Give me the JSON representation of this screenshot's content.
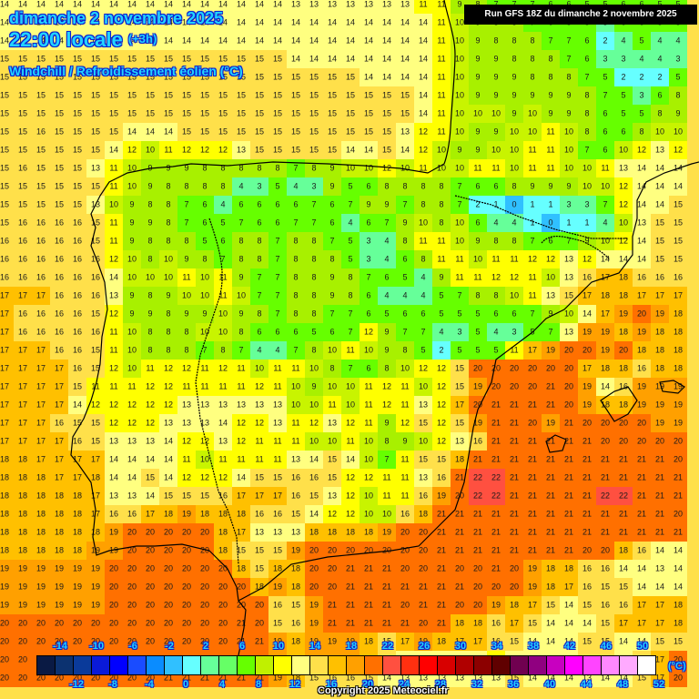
{
  "header": {
    "date": "dimanche 2 novembre 2025",
    "time": "22:00 locale",
    "offset": "(+3h)",
    "parameter": "Windchill / Refroidissement éolien (°C)",
    "run": "Run GFS 18Z du dimanche 2 novembre 2025"
  },
  "footer": {
    "copyright": "Copyright 2025 Meteociel.fr",
    "unit": "(°C)"
  },
  "legend": {
    "colors": [
      "#0a1a44",
      "#0c3270",
      "#0a3a9a",
      "#0a1ad8",
      "#0000ff",
      "#1a4cff",
      "#0a8cff",
      "#30c0ff",
      "#66ffff",
      "#66ff99",
      "#66ff66",
      "#66ff00",
      "#c0f000",
      "#ffff00",
      "#ffff80",
      "#ffe04a",
      "#ffc000",
      "#ffa000",
      "#ff7000",
      "#ff5040",
      "#ff3010",
      "#ff0000",
      "#d80000",
      "#b00000",
      "#8c0000",
      "#600000",
      "#700050",
      "#900080",
      "#c800c0",
      "#ff00ff",
      "#ff44ff",
      "#ff88ff",
      "#ffaaff",
      "#ffffff"
    ],
    "top_labels": [
      "-14",
      "-10",
      "-6",
      "-2",
      "2",
      "6",
      "10",
      "14",
      "18",
      "22",
      "26",
      "30",
      "34",
      "38",
      "42",
      "46",
      "50"
    ],
    "bottom_labels": [
      "-12",
      "-8",
      "-4",
      "0",
      "4",
      "8",
      "12",
      "16",
      "20",
      "24",
      "28",
      "32",
      "36",
      "40",
      "44",
      "48",
      "52"
    ]
  },
  "map": {
    "region": "Iberian Peninsula and Balearic Islands",
    "grid_origin": [
      5,
      5
    ],
    "grid_step": 20,
    "rows": [
      "14 14 14 14 14 14 14 14 14 14 14 14 14 14 14 14 13 13 13 13 13 13 13 11 11 9 8 7 7 7 6 6 5 5 6 6 5 5",
      "14 14 14 14 14 14 14 14 14 14 14 14 14 14 14 14 14 14 14 14 14 14 14 14 11 10 9 8 8 7 6 5 5 3 6 6 5 5",
      "14 14 14 14 14 14 14 14 14 14 14 14 14 14 14 14 14 14 14 14 14 14 14 14 11 10 9 8 8 8 7 7 6 2 4 5 4 4",
      "15 15 15 15 15 15 15 15 15 15 15 15 15 15 15 15 14 14 14 14 14 14 14 14 11 10 9 9 8 8 8 7 6 3 3 4 4 3",
      "15 15 15 15 15 15 15 15 15 15 15 15 15 15 15 15 15 15 15 15 14 14 14 14 11 10 9 9 9 8 8 8 7 5 2 2 2 5",
      "15 15 15 15 15 15 15 15 15 15 15 15 15 15 15 15 15 15 15 15 15 15 15 14 11 10 9 9 9 9 9 9 8 7 5 3 6 8",
      "15 15 15 15 15 15 15 15 15 15 15 15 15 15 15 15 15 15 15 15 15 15 15 14 11 10 10 10 9 10 9 9 8 6 5 5 8 9",
      "15 15 16 15 15 15 15 14 14 14 15 15 15 15 15 15 15 15 15 15 15 15 13 12 11 10 9 9 10 10 11 10 8 6 6 8 10 10",
      "15 15 15 15 15 15 14 12 10 11 12 12 12 13 15 15 15 15 15 14 14 15 14 12 10 9 9 10 10 11 11 10 7 6 10 12 13 12",
      "15 16 15 15 15 13 11 10 9 9 9 8 8 8 8 8 7 8 9 10 10 12 10 11 10 10 11 11 10 11 11 10 10 11 13 14 14 14",
      "15 15 15 15 15 15 11 10 9 8 8 8 8 4 3 5 4 3 9 5 6 8 8 8 8 7 6 6 8 9 9 9 10 10 12 14 14 14",
      "15 15 15 15 15 13 10 9 8 8 7 6 4 6 6 6 6 7 6 7 9 9 7 8 8 7 2 1 0 1 1 3 3 7 12 14 14 15",
      "15 16 16 16 16 15 11 9 9 8 7 6 5 7 6 6 7 7 6 4 6 7 9 10 8 10 6 4 4 1 0 1 1 4 10 13 15 15",
      "16 16 16 16 16 15 11 9 8 8 8 5 6 8 8 7 8 8 7 5 3 4 8 11 11 10 9 8 8 7 6 7 9 10 12 14 15 15",
      "16 16 16 16 16 16 12 10 8 10 9 8 7 8 8 7 8 8 8 5 3 4 6 8 11 11 10 11 11 12 12 13 12 14 14 14 15 15",
      "16 16 16 16 16 16 14 10 10 10 11 10 11 9 7 7 8 8 9 8 7 6 5 4 9 11 11 12 12 11 10 13 16 17 18 16 16 16",
      "17 17 17 16 16 16 13 9 8 9 10 10 11 10 7 7 8 8 9 8 6 4 4 4 5 7 8 8 10 11 13 15 17 18 18 17 17 17",
      "17 16 16 16 16 15 12 9 9 8 9 9 10 9 8 7 8 8 7 7 6 5 6 6 5 5 5 6 6 7 9 10 14 17 19 20 19 18",
      "17 16 16 16 16 16 11 10 8 8 8 10 10 8 6 6 6 5 6 7 12 9 7 7 4 3 5 4 3 5 7 13 19 19 18 19 18 18",
      "17 17 17 16 16 15 11 10 8 8 8 7 8 7 4 4 7 8 10 11 10 9 8 5 2 5 5 5 11 17 19 20 20 19 20 18 18 18",
      "17 17 17 17 16 15 12 10 11 12 12 11 12 11 10 11 11 10 8 7 6 8 10 12 12 15 20 20 20 20 20 20 17 18 18 16 18 18",
      "17 17 17 17 15 11 11 11 12 12 11 11 11 11 12 11 10 9 10 10 11 12 11 10 12 15 19 20 20 20 21 20 19 14 16 19 19 19",
      "17 17 17 17 14 12 12 12 12 12 13 13 13 13 13 13 10 10 11 10 11 12 11 13 12 17 20 21 21 21 21 20 19 18 18 19 19 19",
      "17 17 17 16 15 15 12 12 12 13 13 13 14 12 12 13 11 12 13 12 11 9 12 15 12 15 19 21 21 20 19 21 20 20 20 20 19 19",
      "17 17 17 17 16 15 13 13 13 14 12 12 13 12 11 11 11 10 10 11 10 8 9 10 12 13 16 21 21 21 21 21 21 20 20 20 20 20",
      "18 18 17 17 17 17 14 14 14 14 11 10 11 11 11 11 13 14 15 14 10 7 11 15 15 18 21 21 21 21 21 21 21 21 21 21 21 20",
      "18 18 18 17 17 18 14 14 15 14 12 12 12 14 15 15 16 16 15 12 12 11 11 13 16 21 22 22 21 21 21 21 21 21 21 21 21 21",
      "18 18 18 18 18 17 13 13 14 15 15 15 16 17 17 17 16 15 13 12 10 11 11 16 19 20 22 22 21 21 21 21 21 22 22 21 21 21",
      "18 18 18 18 18 17 16 16 17 18 19 18 18 18 16 16 15 14 12 12 10 10 16 18 21 21 21 21 21 21 21 21 21 21 21 21 21 20",
      "18 18 18 18 18 18 19 20 20 20 20 20 18 17 13 13 13 18 18 18 18 19 20 20 21 21 21 21 21 21 21 21 21 21 21 21 21 21",
      "18 18 18 18 18 19 19 20 20 20 20 20 18 15 15 15 19 20 20 20 20 20 20 20 21 21 21 21 21 21 21 21 20 20 18 16 14 14",
      "19 19 19 19 19 19 20 20 20 20 20 20 20 18 15 18 18 20 20 21 21 21 20 20 21 20 20 21 20 19 18 18 16 16 14 14 13 14",
      "19 19 19 19 19 19 20 20 20 20 20 20 20 20 18 19 18 20 20 21 21 21 21 21 21 21 20 20 20 19 18 17 16 15 15 14 14 14",
      "19 19 19 19 19 19 20 20 20 20 20 20 20 20 20 16 15 19 21 21 21 21 20 21 21 20 20 19 18 17 15 14 15 16 16 17 17 18",
      "20 20 20 20 20 20 20 20 20 20 20 20 20 21 20 15 16 19 21 21 21 21 21 20 21 18 18 16 17 15 14 14 14 15 17 17 17 18",
      "20 20 20 20 20 20 20 20 20 20 20 20 20 21 21 19 18 19 19 19 18 15 17 19 18 17 17 16 15 14 14 14 15 15 14 14 15 15",
      "20 20 20 20 20 20 20 20 20 20 20 20 20 21 21 19 18 19 19 19 18 15 14 13 13 13 13 12 13 14 14 14 15 15 14 15 17 20",
      "20 20 20 20 20 20 20 20 20 21 21 21 21 21 21 19 18 15 16 16 15 14 13 13 13 13 13 13 15 14 14 14 13 14 14 15 17 20"
    ]
  }
}
